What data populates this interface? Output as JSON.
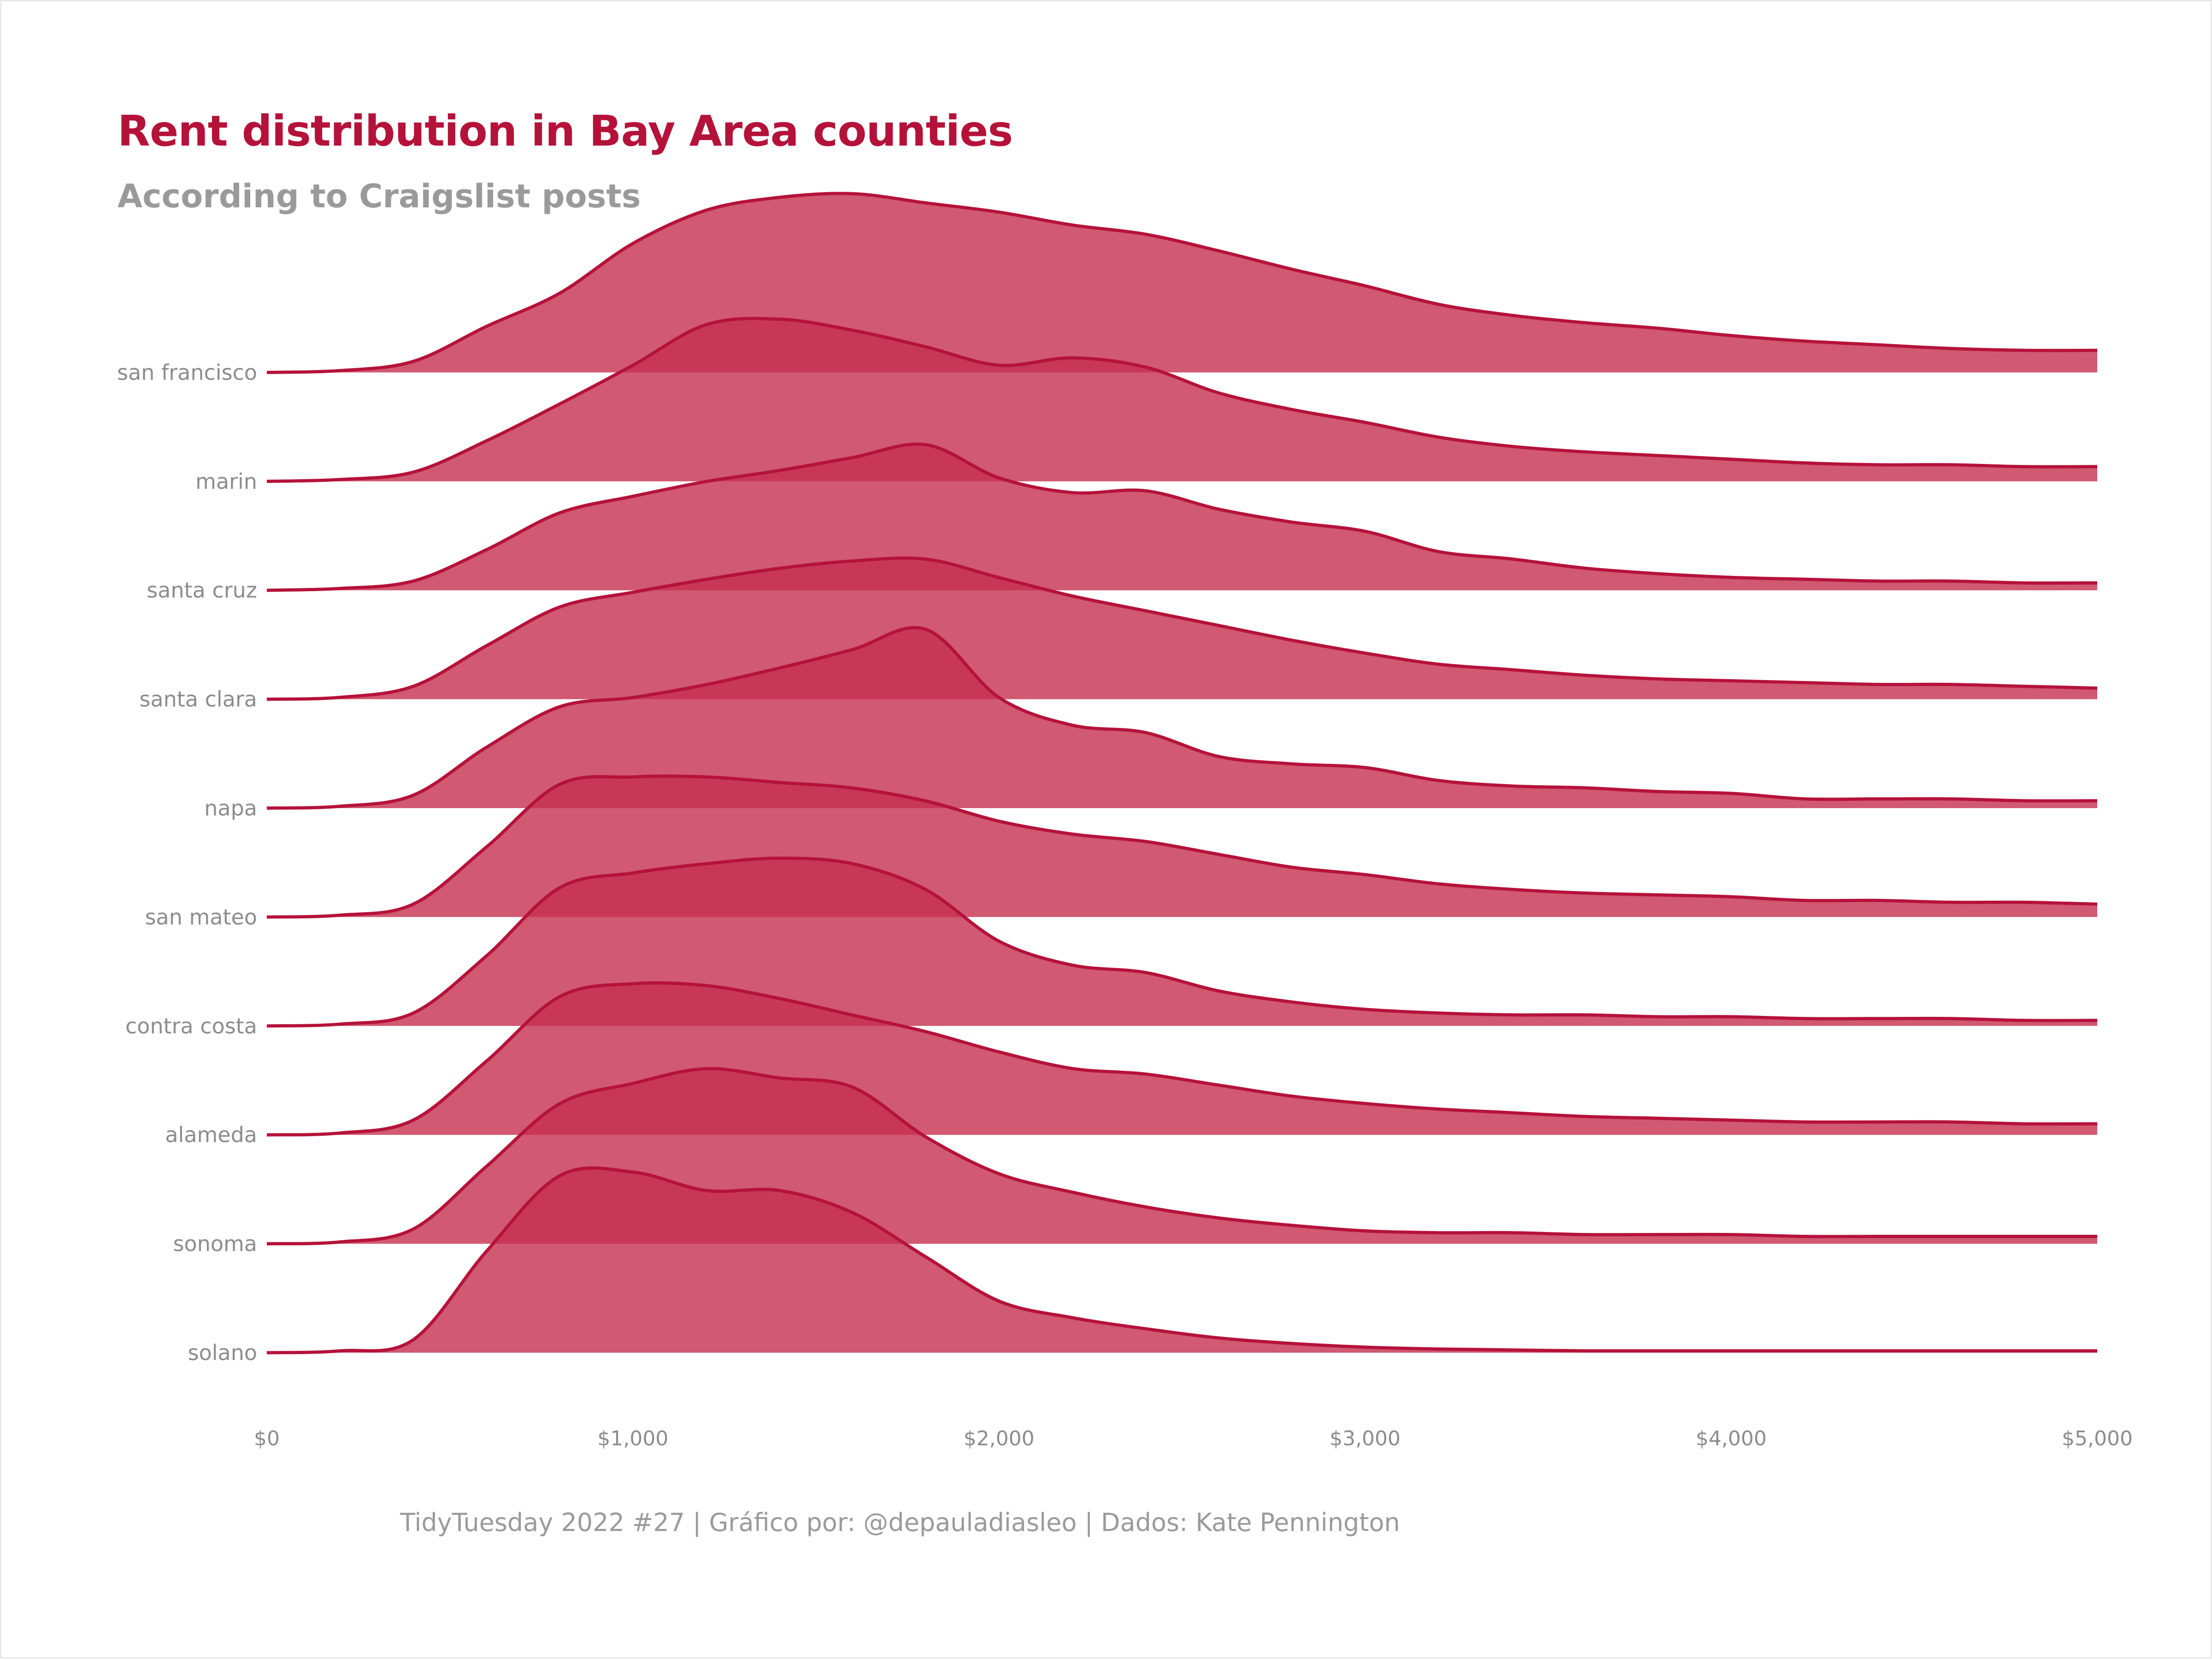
{
  "title": "Rent distribution in Bay Area counties",
  "subtitle": "According to Craigslist posts",
  "caption": "TidyTuesday 2022 #27 | Gráfico por: @depauladiasleo | Dados: Kate Pennington",
  "colors": {
    "title": "#b5123a",
    "fill": "#c5304f",
    "line": "#b5123a",
    "text": "#9a9a9a"
  },
  "chart_data": {
    "type": "area",
    "subtype": "ridgeline-density",
    "title": "Rent distribution in Bay Area counties",
    "subtitle": "According to Craigslist posts",
    "xlabel": "",
    "ylabel": "",
    "xlim": [
      0,
      5000
    ],
    "x_ticks": [
      0,
      1000,
      2000,
      3000,
      4000,
      5000
    ],
    "x_tick_labels": [
      "$0",
      "$1,000",
      "$2,000",
      "$3,000",
      "$4,000",
      "$5,000"
    ],
    "grid": false,
    "legend": "none",
    "x": [
      0,
      200,
      400,
      600,
      800,
      1000,
      1200,
      1400,
      1600,
      1800,
      2000,
      2200,
      2400,
      2600,
      2800,
      3000,
      3200,
      3400,
      3600,
      3800,
      4000,
      4200,
      4400,
      4600,
      4800,
      5000
    ],
    "series": [
      {
        "name": "solano",
        "values": [
          0,
          0.01,
          0.07,
          0.55,
          0.96,
          0.98,
          0.88,
          0.88,
          0.76,
          0.52,
          0.28,
          0.19,
          0.13,
          0.08,
          0.05,
          0.03,
          0.02,
          0.015,
          0.01,
          0.01,
          0.01,
          0.01,
          0.01,
          0.01,
          0.01,
          0.01
        ]
      },
      {
        "name": "sonoma",
        "values": [
          0,
          0.01,
          0.08,
          0.42,
          0.76,
          0.87,
          0.95,
          0.9,
          0.85,
          0.58,
          0.38,
          0.28,
          0.2,
          0.14,
          0.1,
          0.07,
          0.06,
          0.06,
          0.05,
          0.05,
          0.05,
          0.04,
          0.04,
          0.04,
          0.04,
          0.04
        ]
      },
      {
        "name": "alameda",
        "values": [
          0,
          0.01,
          0.08,
          0.4,
          0.75,
          0.82,
          0.81,
          0.74,
          0.65,
          0.56,
          0.45,
          0.36,
          0.33,
          0.27,
          0.21,
          0.17,
          0.14,
          0.12,
          0.1,
          0.09,
          0.08,
          0.07,
          0.07,
          0.07,
          0.06,
          0.06
        ]
      },
      {
        "name": "contra costa",
        "values": [
          0,
          0.01,
          0.07,
          0.38,
          0.75,
          0.83,
          0.88,
          0.91,
          0.88,
          0.74,
          0.46,
          0.33,
          0.29,
          0.19,
          0.13,
          0.09,
          0.07,
          0.06,
          0.06,
          0.05,
          0.05,
          0.04,
          0.04,
          0.04,
          0.03,
          0.03
        ]
      },
      {
        "name": "san mateo",
        "values": [
          0,
          0.01,
          0.07,
          0.38,
          0.72,
          0.76,
          0.76,
          0.73,
          0.7,
          0.63,
          0.52,
          0.45,
          0.41,
          0.34,
          0.27,
          0.23,
          0.18,
          0.15,
          0.13,
          0.12,
          0.11,
          0.09,
          0.09,
          0.08,
          0.08,
          0.07
        ]
      },
      {
        "name": "napa",
        "values": [
          0,
          0.01,
          0.07,
          0.33,
          0.55,
          0.6,
          0.67,
          0.76,
          0.86,
          0.97,
          0.6,
          0.45,
          0.41,
          0.28,
          0.24,
          0.22,
          0.15,
          0.12,
          0.11,
          0.09,
          0.08,
          0.05,
          0.05,
          0.05,
          0.04,
          0.04
        ]
      },
      {
        "name": "santa clara",
        "values": [
          0,
          0.01,
          0.07,
          0.29,
          0.5,
          0.58,
          0.65,
          0.71,
          0.75,
          0.76,
          0.66,
          0.56,
          0.48,
          0.4,
          0.32,
          0.25,
          0.19,
          0.16,
          0.13,
          0.11,
          0.1,
          0.09,
          0.08,
          0.08,
          0.07,
          0.06
        ]
      },
      {
        "name": "santa cruz",
        "values": [
          0,
          0.01,
          0.05,
          0.22,
          0.42,
          0.51,
          0.59,
          0.65,
          0.72,
          0.79,
          0.61,
          0.53,
          0.54,
          0.44,
          0.37,
          0.32,
          0.21,
          0.17,
          0.12,
          0.09,
          0.07,
          0.06,
          0.05,
          0.05,
          0.04,
          0.04
        ]
      },
      {
        "name": "marin",
        "values": [
          0,
          0.01,
          0.05,
          0.22,
          0.42,
          0.63,
          0.85,
          0.88,
          0.82,
          0.73,
          0.63,
          0.67,
          0.62,
          0.48,
          0.39,
          0.32,
          0.24,
          0.19,
          0.16,
          0.14,
          0.12,
          0.1,
          0.09,
          0.09,
          0.08,
          0.08
        ]
      },
      {
        "name": "san francisco",
        "values": [
          0,
          0.01,
          0.06,
          0.25,
          0.43,
          0.7,
          0.88,
          0.95,
          0.97,
          0.92,
          0.87,
          0.8,
          0.75,
          0.66,
          0.56,
          0.47,
          0.37,
          0.31,
          0.27,
          0.24,
          0.2,
          0.17,
          0.15,
          0.13,
          0.12,
          0.12
        ]
      }
    ]
  }
}
